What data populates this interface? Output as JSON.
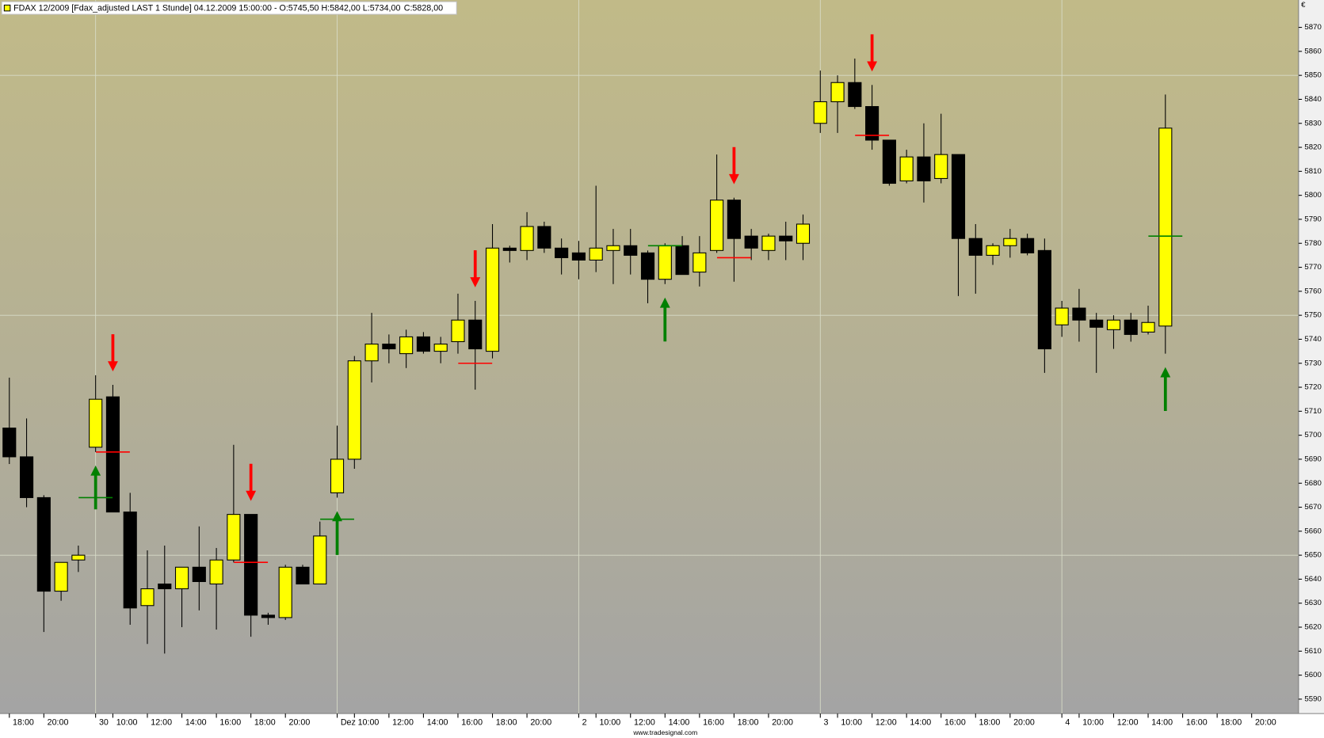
{
  "chart_data": {
    "type": "candlestick",
    "title": "FDAX 12/2009 [Fdax_adjusted LAST 1 Stunde] 04.12.2009 15:00:00 - O:5745,50 H:5842,00 L:5734,00",
    "close_label": "C:5828,00",
    "close_label_color": "#00a000",
    "currency": "€",
    "footer": "www.tradesignal.com",
    "categories": [
      "18:00",
      null,
      "20:00",
      null,
      null,
      "30",
      "10:00",
      null,
      "12:00",
      null,
      "14:00",
      null,
      "16:00",
      null,
      "18:00",
      null,
      "20:00",
      null,
      null,
      "Dez",
      "10:00",
      null,
      "12:00",
      null,
      "14:00",
      null,
      "16:00",
      null,
      "18:00",
      null,
      "20:00",
      null,
      null,
      "2",
      "10:00",
      null,
      "12:00",
      null,
      "14:00",
      null,
      "16:00",
      null,
      "18:00",
      null,
      "20:00",
      null,
      null,
      "3",
      "10:00",
      null,
      "12:00",
      null,
      "14:00",
      null,
      "16:00",
      null,
      "18:00",
      null,
      "20:00",
      null,
      null,
      "4",
      "10:00",
      null,
      "12:00",
      null,
      "14:00",
      null,
      "16:00",
      null,
      "18:00",
      null,
      "20:00",
      null,
      null
    ],
    "open": [
      5703,
      5691,
      5674,
      5635,
      5648,
      5695,
      5716,
      5668,
      5629,
      5638,
      5636,
      5645,
      5638,
      5648,
      5667,
      5625,
      5624,
      5645,
      5638,
      5676,
      5690,
      5731,
      5738,
      5734,
      5741,
      5735,
      5739,
      5748,
      5735,
      5778,
      5777,
      5787,
      5778,
      5776,
      5773,
      5777,
      5779,
      5776,
      5765,
      5779,
      5768,
      5777,
      5798,
      5783,
      5777,
      5783,
      5780,
      5830,
      5839,
      5847,
      5837,
      5823,
      5806,
      5816,
      5807,
      5817,
      5782,
      5775,
      5779,
      5782,
      5777,
      5746,
      5753,
      5748,
      5744,
      5748,
      5743,
      5745.5,
      null,
      null,
      null,
      null,
      null,
      null,
      null
    ],
    "high": [
      5724,
      5707,
      5675,
      5647,
      5654,
      5725,
      5721,
      5676,
      5652,
      5654,
      5645,
      5662,
      5653,
      5696,
      5667,
      5626,
      5646,
      5646,
      5664,
      5704,
      5733,
      5751,
      5742,
      5744,
      5743,
      5741,
      5759,
      5756,
      5788,
      5779,
      5793,
      5789,
      5782,
      5781,
      5804,
      5786,
      5786,
      5777,
      5780,
      5783,
      5783,
      5817,
      5799,
      5786,
      5784,
      5789,
      5792,
      5852,
      5850,
      5857,
      5846,
      5823,
      5819,
      5830,
      5834,
      5817,
      5788,
      5780,
      5786,
      5784,
      5782,
      5756,
      5761,
      5751,
      5750,
      5751,
      5754,
      5842,
      null,
      null,
      null,
      null,
      null,
      null,
      null
    ],
    "low": [
      5688,
      5670,
      5618,
      5631,
      5643,
      5693,
      5668,
      5621,
      5613,
      5609,
      5620,
      5627,
      5619,
      5647,
      5616,
      5621,
      5623,
      5638,
      5638,
      5674,
      5686,
      5722,
      5730,
      5728,
      5734,
      5730,
      5734,
      5719,
      5732,
      5772,
      5773,
      5776,
      5767,
      5765,
      5768,
      5763,
      5767,
      5755,
      5763,
      5767,
      5762,
      5776,
      5764,
      5773,
      5773,
      5773,
      5773,
      5826,
      5826,
      5836,
      5819,
      5804,
      5805,
      5797,
      5805,
      5758,
      5759,
      5771,
      5774,
      5775,
      5726,
      5741,
      5739,
      5726,
      5736,
      5739,
      5742,
      5734,
      null,
      null,
      null,
      null,
      null,
      null,
      null
    ],
    "close": [
      5691,
      5674,
      5635,
      5647,
      5650,
      5715,
      5668,
      5628,
      5636,
      5636,
      5645,
      5639,
      5648,
      5667,
      5625,
      5624,
      5645,
      5638,
      5658,
      5690,
      5731,
      5738,
      5736,
      5741,
      5735,
      5738,
      5748,
      5736,
      5778,
      5777,
      5787,
      5778,
      5774,
      5773,
      5778,
      5779,
      5775,
      5765,
      5779,
      5767,
      5776,
      5798,
      5782,
      5778,
      5783,
      5781,
      5788,
      5839,
      5847,
      5837,
      5823,
      5805,
      5816,
      5806,
      5817,
      5782,
      5775,
      5779,
      5782,
      5776,
      5736,
      5753,
      5748,
      5745,
      5748,
      5742,
      5747,
      5828,
      null,
      null,
      null,
      null,
      null,
      null,
      null
    ],
    "up_color": "#ffff00",
    "down_color": "#000000",
    "buy_stops": {
      "color": "#008000",
      "values": [
        null,
        null,
        null,
        null,
        null,
        5674,
        null,
        null,
        null,
        null,
        null,
        null,
        null,
        null,
        null,
        null,
        null,
        null,
        null,
        5665,
        null,
        null,
        null,
        null,
        null,
        null,
        null,
        null,
        null,
        null,
        null,
        null,
        null,
        null,
        null,
        null,
        null,
        null,
        5779,
        null,
        null,
        null,
        null,
        null,
        null,
        null,
        null,
        null,
        null,
        null,
        null,
        null,
        null,
        null,
        null,
        null,
        null,
        null,
        null,
        null,
        null,
        null,
        null,
        null,
        null,
        null,
        null,
        5783,
        null,
        null,
        null,
        null,
        null,
        null,
        null
      ]
    },
    "sell_stops": {
      "color": "#ff0000",
      "values": [
        null,
        null,
        null,
        null,
        null,
        null,
        5693,
        null,
        null,
        null,
        null,
        null,
        null,
        null,
        5647,
        null,
        null,
        null,
        null,
        null,
        null,
        null,
        null,
        null,
        null,
        null,
        null,
        5730,
        null,
        null,
        null,
        null,
        null,
        null,
        null,
        null,
        null,
        null,
        null,
        null,
        null,
        null,
        5774,
        null,
        null,
        null,
        null,
        null,
        null,
        null,
        5825,
        null,
        null,
        null,
        null,
        null,
        null,
        null,
        null,
        null,
        null,
        null,
        null,
        null,
        null,
        null,
        null,
        null,
        null,
        null,
        null,
        null,
        null,
        null,
        null
      ]
    },
    "ylim": [
      5584,
      5880
    ],
    "yticks": [
      5590,
      5600,
      5610,
      5620,
      5630,
      5640,
      5650,
      5660,
      5670,
      5680,
      5690,
      5700,
      5710,
      5720,
      5730,
      5740,
      5750,
      5760,
      5770,
      5780,
      5790,
      5800,
      5810,
      5820,
      5830,
      5840,
      5850,
      5860,
      5870
    ],
    "grid": true
  }
}
